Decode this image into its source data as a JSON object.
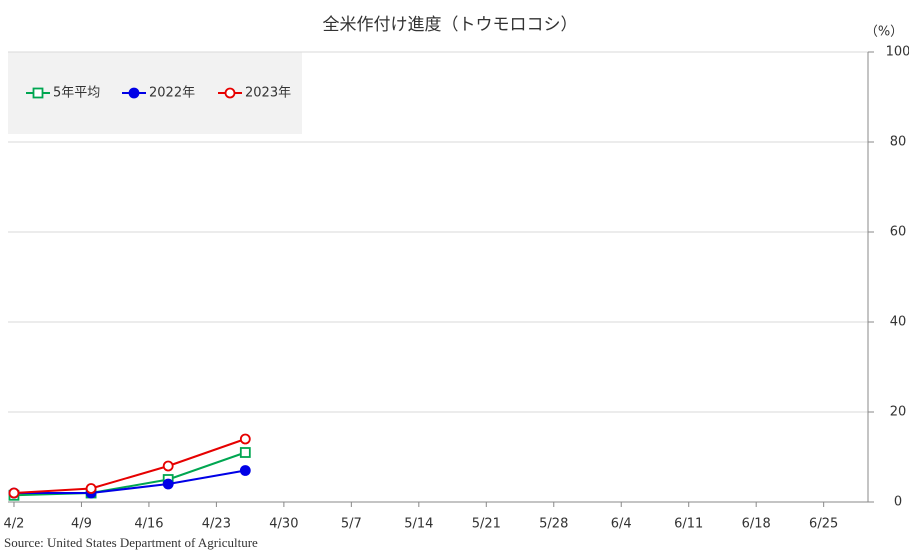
{
  "chart_data": {
    "type": "line",
    "title": "全米作付け進度（トウモロコシ）",
    "y_unit": "（%）",
    "source": "Source: United States Department of Agriculture",
    "x": [
      0,
      8,
      16,
      24
    ],
    "xlim": [
      -0.62,
      88.6
    ],
    "xticks": [
      {
        "value": 0,
        "label": "4/2"
      },
      {
        "value": 7,
        "label": "4/9"
      },
      {
        "value": 14,
        "label": "4/16"
      },
      {
        "value": 21,
        "label": "4/23"
      },
      {
        "value": 28,
        "label": "4/30"
      },
      {
        "value": 35,
        "label": "5/7"
      },
      {
        "value": 42,
        "label": "5/14"
      },
      {
        "value": 49,
        "label": "5/21"
      },
      {
        "value": 56,
        "label": "5/28"
      },
      {
        "value": 63,
        "label": "6/4"
      },
      {
        "value": 70,
        "label": "6/11"
      },
      {
        "value": 77,
        "label": "6/18"
      },
      {
        "value": 84,
        "label": "6/25"
      }
    ],
    "ylim": [
      0,
      100
    ],
    "yticks": [
      0,
      20,
      40,
      60,
      80,
      100
    ],
    "grid": true,
    "legend": "top-left",
    "series": [
      {
        "name": "5年平均",
        "color": "#00a651",
        "marker": "square-open",
        "values": [
          1.5,
          2,
          5,
          11
        ]
      },
      {
        "name": "2022年",
        "color": "#0000e6",
        "marker": "circle-filled",
        "values": [
          2,
          2,
          4,
          7
        ]
      },
      {
        "name": "2023年",
        "color": "#e60000",
        "marker": "circle-open",
        "values": [
          2,
          3,
          8,
          14
        ]
      }
    ]
  }
}
